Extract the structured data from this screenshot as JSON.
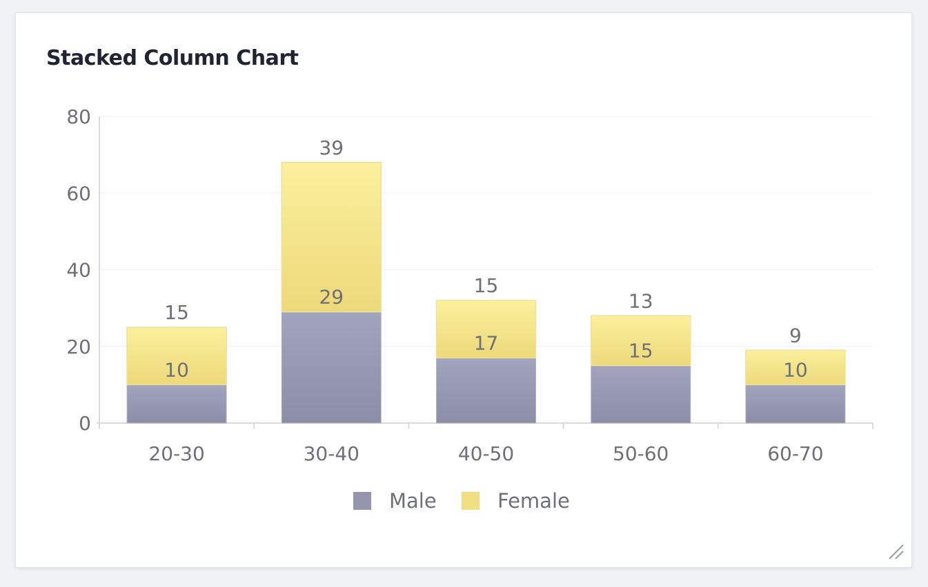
{
  "card": {
    "title": "Stacked Column Chart"
  },
  "colors": {
    "male": "#9496ae",
    "female": "#f0df83",
    "axis": "#d8dae0",
    "grid": "#f0f1f4",
    "label": "#6f6f78"
  },
  "icons": {
    "resize": "resize-grip-icon"
  },
  "chart_data": {
    "type": "bar",
    "stacked": true,
    "title": "Stacked Column Chart",
    "categories": [
      "20-30",
      "30-40",
      "40-50",
      "50-60",
      "60-70"
    ],
    "series": [
      {
        "name": "Male",
        "values": [
          10,
          29,
          17,
          15,
          10
        ]
      },
      {
        "name": "Female",
        "values": [
          15,
          39,
          15,
          13,
          9
        ]
      }
    ],
    "ylim": [
      0,
      80
    ],
    "yticks": [
      0,
      20,
      40,
      60,
      80
    ],
    "xlabel": "",
    "ylabel": "",
    "grid": true,
    "legend": "bottom"
  }
}
